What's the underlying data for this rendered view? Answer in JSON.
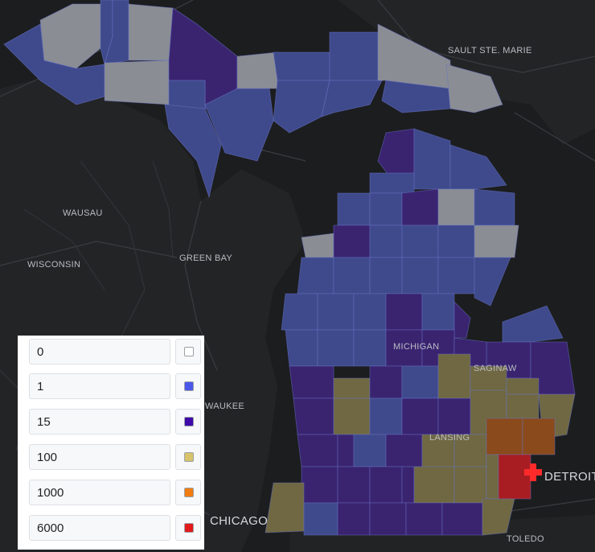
{
  "map": {
    "labels": {
      "sault_ste_marie": "SAULT STE. MARIE",
      "wausau": "WAUSAU",
      "wisconsin": "WISCONSIN",
      "green_bay": "GREEN BAY",
      "michigan": "MICHIGAN",
      "saginaw": "SAGINAW",
      "milwaukee_partial": "WAUKEE",
      "lansing": "LANSING",
      "detroit": "DETROIT",
      "chicago": "CHICAGO",
      "toledo": "TOLEDO"
    },
    "colors": {
      "zero": "#8a8d93",
      "one": "#3f4a8c",
      "fifteen": "#3a2470",
      "hundred": "#6f6842",
      "thousand": "#8a4a1c",
      "sixthousand": "#a81d22",
      "background": "#1c1d1f",
      "land": "#262729",
      "marker": "#ff2a2a"
    },
    "marker_icon": "hospital-cross-icon"
  },
  "legend": {
    "rows": [
      {
        "value": "0",
        "color": "#ffffff"
      },
      {
        "value": "1",
        "color": "#4a57e8"
      },
      {
        "value": "15",
        "color": "#3f0aa8"
      },
      {
        "value": "100",
        "color": "#d9c36a"
      },
      {
        "value": "1000",
        "color": "#f07c12"
      },
      {
        "value": "6000",
        "color": "#e31a1a"
      }
    ]
  }
}
